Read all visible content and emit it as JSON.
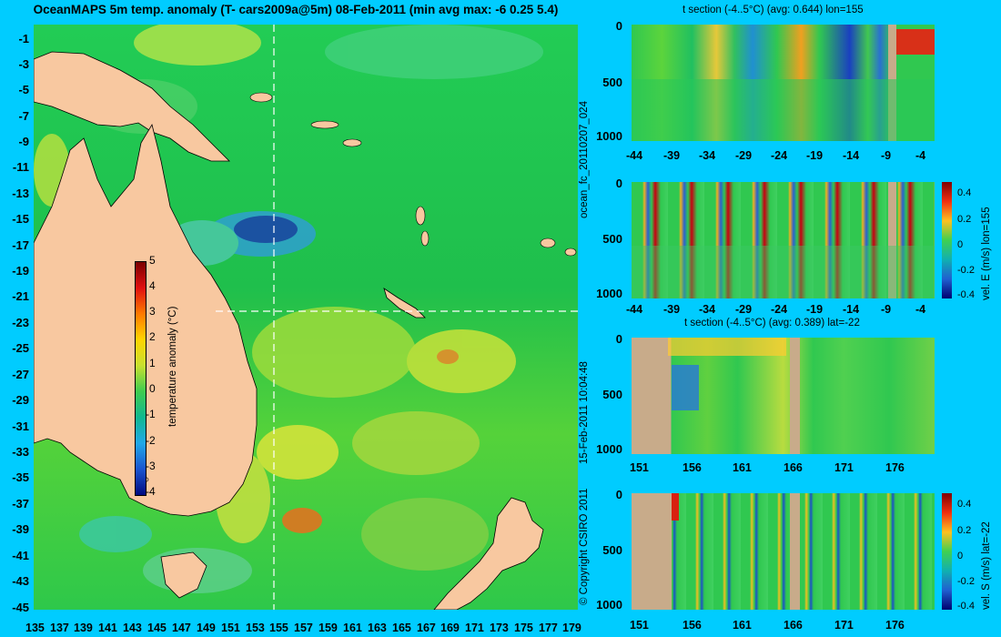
{
  "title": "OceanMAPS 5m temp. anomaly (T- cars2009a@5m) 08-Feb-2011 (min avg max: -6 0.25 5.4)",
  "map": {
    "lat_ticks": [
      "-1",
      "-3",
      "-5",
      "-7",
      "-9",
      "-11",
      "-13",
      "-15",
      "-17",
      "-19",
      "-21",
      "-23",
      "-25",
      "-27",
      "-29",
      "-31",
      "-33",
      "-35",
      "-37",
      "-39",
      "-41",
      "-43",
      "-45"
    ],
    "lon_ticks": [
      "135",
      "137",
      "139",
      "141",
      "143",
      "145",
      "147",
      "149",
      "151",
      "153",
      "155",
      "157",
      "159",
      "161",
      "163",
      "165",
      "167",
      "169",
      "171",
      "173",
      "175",
      "177",
      "179"
    ],
    "colorbar": {
      "label": "temperature anomaly (°C)",
      "ticks": [
        "5",
        "4",
        "3",
        "2",
        "1",
        "0",
        "-1",
        "-2",
        "-3",
        "-4"
      ]
    }
  },
  "panels": [
    {
      "title": "t section (-4..5°C) (avg: 0.644) lon=155",
      "depth_ticks": [
        "0",
        "500",
        "1000"
      ],
      "x_ticks": [
        "-44",
        "-39",
        "-34",
        "-29",
        "-24",
        "-19",
        "-14",
        "-9",
        "-4"
      ]
    },
    {
      "title": "",
      "depth_ticks": [
        "0",
        "500",
        "1000"
      ],
      "x_ticks": [
        "-44",
        "-39",
        "-34",
        "-29",
        "-24",
        "-19",
        "-14",
        "-9",
        "-4"
      ]
    },
    {
      "title": "t section (-4..5°C) (avg: 0.389) lat=-22",
      "depth_ticks": [
        "0",
        "500",
        "1000"
      ],
      "x_ticks": [
        "151",
        "156",
        "161",
        "166",
        "171",
        "176"
      ]
    },
    {
      "title": "",
      "depth_ticks": [
        "0",
        "500",
        "1000"
      ],
      "x_ticks": [
        "151",
        "156",
        "161",
        "166",
        "171",
        "176"
      ]
    }
  ],
  "colorbars_small": [
    {
      "label": "vel. E (m/s) lon=155",
      "ticks": [
        "0.4",
        "0.2",
        "0",
        "-0.2",
        "-0.4"
      ]
    },
    {
      "label": "vel. S (m/s) lat=-22",
      "ticks": [
        "0.4",
        "0.2",
        "0",
        "-0.2",
        "-0.4"
      ]
    }
  ],
  "side_labels": {
    "forecast": "ocean_fc_20110207_024",
    "date": "15-Feb-2011 10:04:48",
    "copyright": "© Copyright CSIRO 2011"
  },
  "colors": {
    "background": "#00ccff",
    "land": "#f8c8a0",
    "ocean_base": "#1fc44c",
    "section_land": "#c8ab8a"
  }
}
